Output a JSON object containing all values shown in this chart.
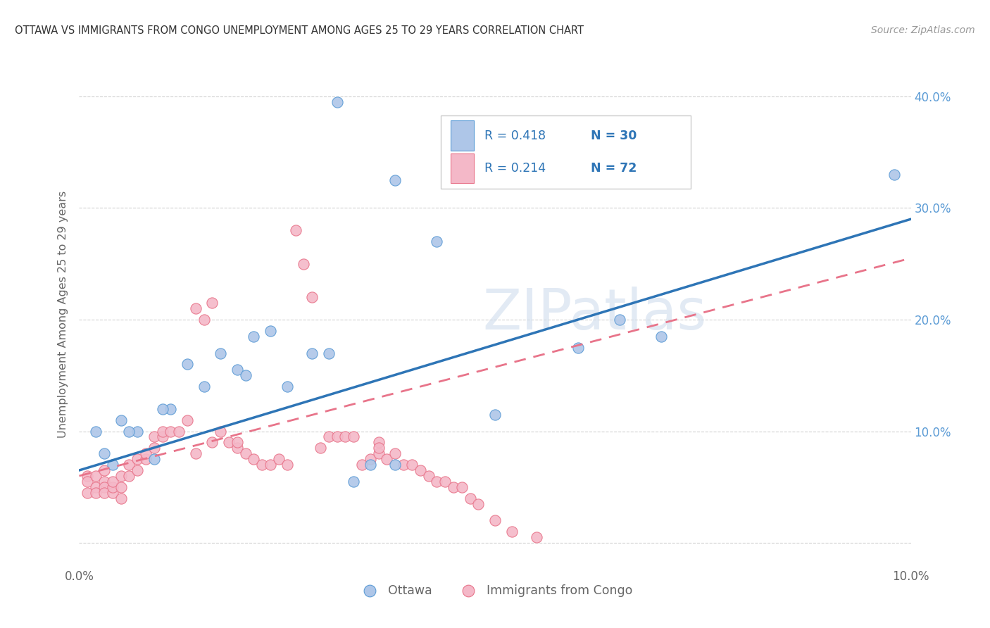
{
  "title": "OTTAWA VS IMMIGRANTS FROM CONGO UNEMPLOYMENT AMONG AGES 25 TO 29 YEARS CORRELATION CHART",
  "source": "Source: ZipAtlas.com",
  "ylabel": "Unemployment Among Ages 25 to 29 years",
  "xlim": [
    0.0,
    0.1
  ],
  "ylim": [
    -0.02,
    0.43
  ],
  "ottawa_color": "#aec6e8",
  "ottawa_edge_color": "#5b9bd5",
  "congo_color": "#f4b8c8",
  "congo_edge_color": "#e8748a",
  "background_color": "#ffffff",
  "watermark_color": "#d0dded",
  "grid_color": "#cccccc",
  "right_tick_color": "#5b9bd5",
  "title_color": "#333333",
  "source_color": "#999999",
  "label_color": "#666666",
  "ottawa_line_color": "#2e75b6",
  "congo_line_color": "#e8748a",
  "ottawa_x": [
    0.031,
    0.038,
    0.098,
    0.043,
    0.003,
    0.005,
    0.007,
    0.009,
    0.011,
    0.013,
    0.015,
    0.017,
    0.019,
    0.021,
    0.023,
    0.025,
    0.028,
    0.03,
    0.033,
    0.035,
    0.038,
    0.05,
    0.06,
    0.065,
    0.07,
    0.002,
    0.004,
    0.006,
    0.01,
    0.02
  ],
  "ottawa_y": [
    0.395,
    0.325,
    0.33,
    0.27,
    0.08,
    0.11,
    0.1,
    0.075,
    0.12,
    0.16,
    0.14,
    0.17,
    0.155,
    0.185,
    0.19,
    0.14,
    0.17,
    0.17,
    0.055,
    0.07,
    0.07,
    0.115,
    0.175,
    0.2,
    0.185,
    0.1,
    0.07,
    0.1,
    0.12,
    0.15
  ],
  "congo_x": [
    0.001,
    0.001,
    0.001,
    0.002,
    0.002,
    0.002,
    0.003,
    0.003,
    0.003,
    0.003,
    0.004,
    0.004,
    0.004,
    0.005,
    0.005,
    0.005,
    0.006,
    0.006,
    0.007,
    0.007,
    0.008,
    0.008,
    0.009,
    0.009,
    0.01,
    0.01,
    0.011,
    0.012,
    0.013,
    0.014,
    0.014,
    0.015,
    0.016,
    0.016,
    0.017,
    0.018,
    0.019,
    0.02,
    0.021,
    0.022,
    0.023,
    0.024,
    0.025,
    0.026,
    0.027,
    0.028,
    0.029,
    0.03,
    0.031,
    0.032,
    0.033,
    0.034,
    0.035,
    0.036,
    0.037,
    0.038,
    0.039,
    0.04,
    0.041,
    0.042,
    0.043,
    0.044,
    0.045,
    0.046,
    0.047,
    0.048,
    0.05,
    0.052,
    0.055,
    0.036,
    0.019,
    0.036
  ],
  "congo_y": [
    0.06,
    0.055,
    0.045,
    0.05,
    0.045,
    0.06,
    0.055,
    0.05,
    0.065,
    0.045,
    0.045,
    0.05,
    0.055,
    0.06,
    0.05,
    0.04,
    0.07,
    0.06,
    0.065,
    0.075,
    0.075,
    0.08,
    0.095,
    0.085,
    0.095,
    0.1,
    0.1,
    0.1,
    0.11,
    0.21,
    0.08,
    0.2,
    0.215,
    0.09,
    0.1,
    0.09,
    0.085,
    0.08,
    0.075,
    0.07,
    0.07,
    0.075,
    0.07,
    0.28,
    0.25,
    0.22,
    0.085,
    0.095,
    0.095,
    0.095,
    0.095,
    0.07,
    0.075,
    0.08,
    0.075,
    0.08,
    0.07,
    0.07,
    0.065,
    0.06,
    0.055,
    0.055,
    0.05,
    0.05,
    0.04,
    0.035,
    0.02,
    0.01,
    0.005,
    0.09,
    0.09,
    0.085
  ],
  "ottawa_line_x": [
    0.0,
    0.1
  ],
  "ottawa_line_y": [
    0.065,
    0.29
  ],
  "congo_line_x": [
    0.0,
    0.1
  ],
  "congo_line_y": [
    0.06,
    0.255
  ]
}
